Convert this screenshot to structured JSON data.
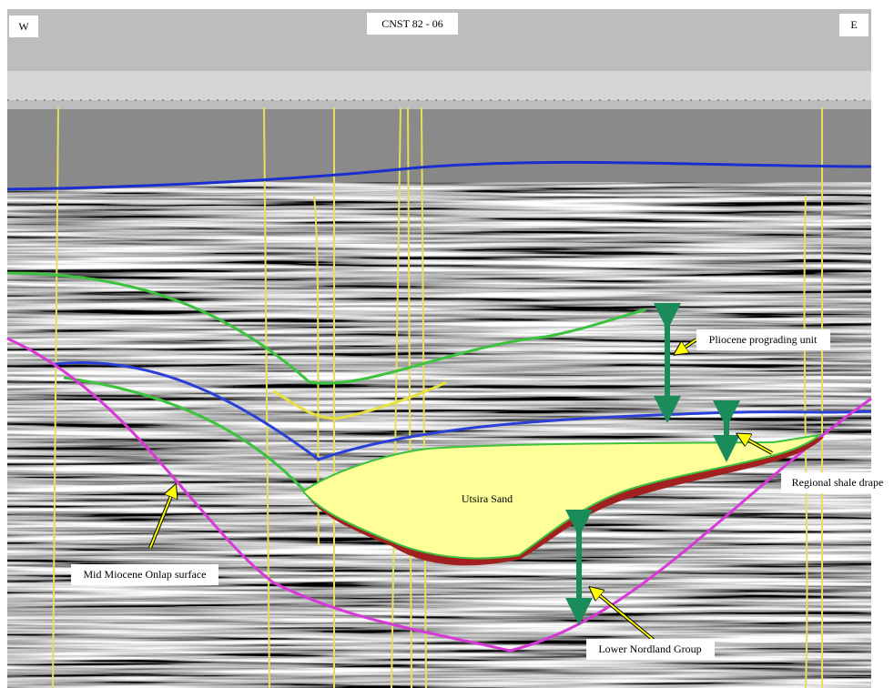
{
  "header": {
    "title": "CNST 82 - 06",
    "west": "W",
    "east": "E"
  },
  "annotations": {
    "pliocene": "Pliocene prograding unit",
    "shale_drape": "Regional shale drape",
    "utsira": "Utsira Sand",
    "onlap": "Mid Miocene Onlap surface",
    "nordland": "Lower Nordland Group"
  }
}
